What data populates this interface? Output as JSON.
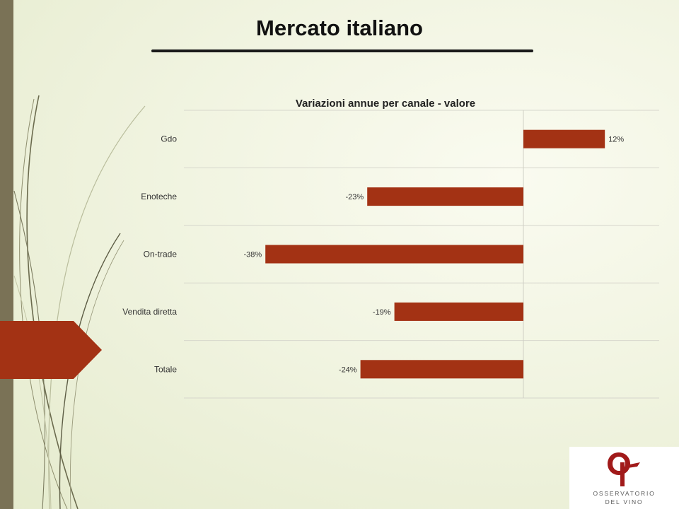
{
  "slide": {
    "title": "Mercato italiano"
  },
  "logo": {
    "line1": "OSSERVATORIO",
    "line2": "DEL VINO",
    "color": "#a11a1a"
  },
  "colors": {
    "bar": "#a33214",
    "sidebar": "#7a7256",
    "arrow": "#a33214"
  },
  "chart_data": {
    "type": "bar",
    "orientation": "horizontal",
    "title": "Variazioni annue per canale - valore",
    "categories": [
      "Gdo",
      "Enoteche",
      "On-trade",
      "Vendita diretta",
      "Totale"
    ],
    "values": [
      12,
      -23,
      -38,
      -19,
      -24
    ],
    "value_labels": [
      "12%",
      "-23%",
      "-38%",
      "-19%",
      "-24%"
    ],
    "unit": "%",
    "xlim": [
      -50,
      20
    ],
    "grid": true,
    "legend": "none"
  }
}
